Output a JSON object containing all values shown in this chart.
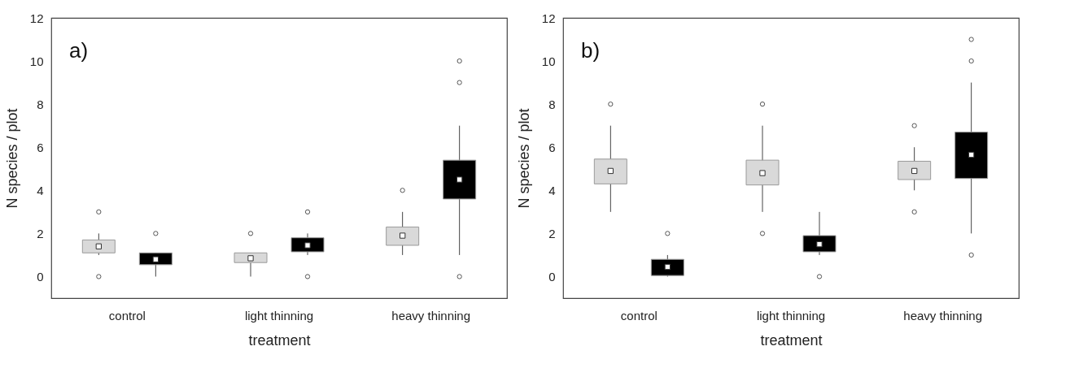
{
  "chart_data": [
    {
      "type": "box",
      "categories": [
        "control",
        "light thinning",
        "heavy thinning"
      ],
      "xlabel": "treatment",
      "ylabel": "N species / plot",
      "annotations": [
        "a)"
      ],
      "ylim": [
        -1,
        12
      ],
      "yticks": [
        0,
        2,
        4,
        6,
        8,
        10,
        12
      ],
      "grid": false,
      "series": [
        {
          "color": "#d9d9d9",
          "boxes": [
            {
              "low": 1,
              "q1": 1.1,
              "median": 1.4,
              "q3": 1.7,
              "high": 2,
              "outliers": [
                0,
                3
              ]
            },
            {
              "low": 0,
              "q1": 0.65,
              "median": 0.85,
              "q3": 1.1,
              "high": 1.1,
              "outliers": [
                2
              ]
            },
            {
              "low": 1,
              "q1": 1.45,
              "median": 1.9,
              "q3": 2.3,
              "high": 3,
              "outliers": [
                4
              ]
            }
          ]
        },
        {
          "color": "#000000",
          "boxes": [
            {
              "low": 0,
              "q1": 0.55,
              "median": 0.8,
              "q3": 1.1,
              "high": 1.1,
              "outliers": [
                2
              ]
            },
            {
              "low": 1,
              "q1": 1.15,
              "median": 1.45,
              "q3": 1.8,
              "high": 2,
              "outliers": [
                0,
                3
              ]
            },
            {
              "low": 1,
              "q1": 3.6,
              "median": 4.5,
              "q3": 5.4,
              "high": 7,
              "outliers": [
                0,
                9,
                10
              ]
            }
          ]
        }
      ]
    },
    {
      "type": "box",
      "categories": [
        "control",
        "light thinning",
        "heavy thinning"
      ],
      "xlabel": "treatment",
      "ylabel": "N species / plot",
      "annotations": [
        "b)"
      ],
      "ylim": [
        -1,
        12
      ],
      "yticks": [
        0,
        2,
        4,
        6,
        8,
        10,
        12
      ],
      "grid": false,
      "series": [
        {
          "color": "#d9d9d9",
          "boxes": [
            {
              "low": 3,
              "q1": 4.3,
              "median": 4.9,
              "q3": 5.45,
              "high": 7,
              "outliers": [
                8
              ]
            },
            {
              "low": 3,
              "q1": 4.25,
              "median": 4.8,
              "q3": 5.4,
              "high": 7,
              "outliers": [
                2,
                8
              ]
            },
            {
              "low": 4,
              "q1": 4.5,
              "median": 4.9,
              "q3": 5.35,
              "high": 6,
              "outliers": [
                3,
                7
              ]
            }
          ]
        },
        {
          "color": "#000000",
          "boxes": [
            {
              "low": 0,
              "q1": 0.05,
              "median": 0.45,
              "q3": 0.8,
              "high": 1,
              "outliers": [
                2
              ]
            },
            {
              "low": 1,
              "q1": 1.15,
              "median": 1.5,
              "q3": 1.9,
              "high": 3,
              "outliers": [
                0
              ]
            },
            {
              "low": 2,
              "q1": 4.55,
              "median": 5.65,
              "q3": 6.7,
              "high": 9,
              "outliers": [
                1,
                10,
                11
              ]
            }
          ]
        }
      ]
    }
  ]
}
